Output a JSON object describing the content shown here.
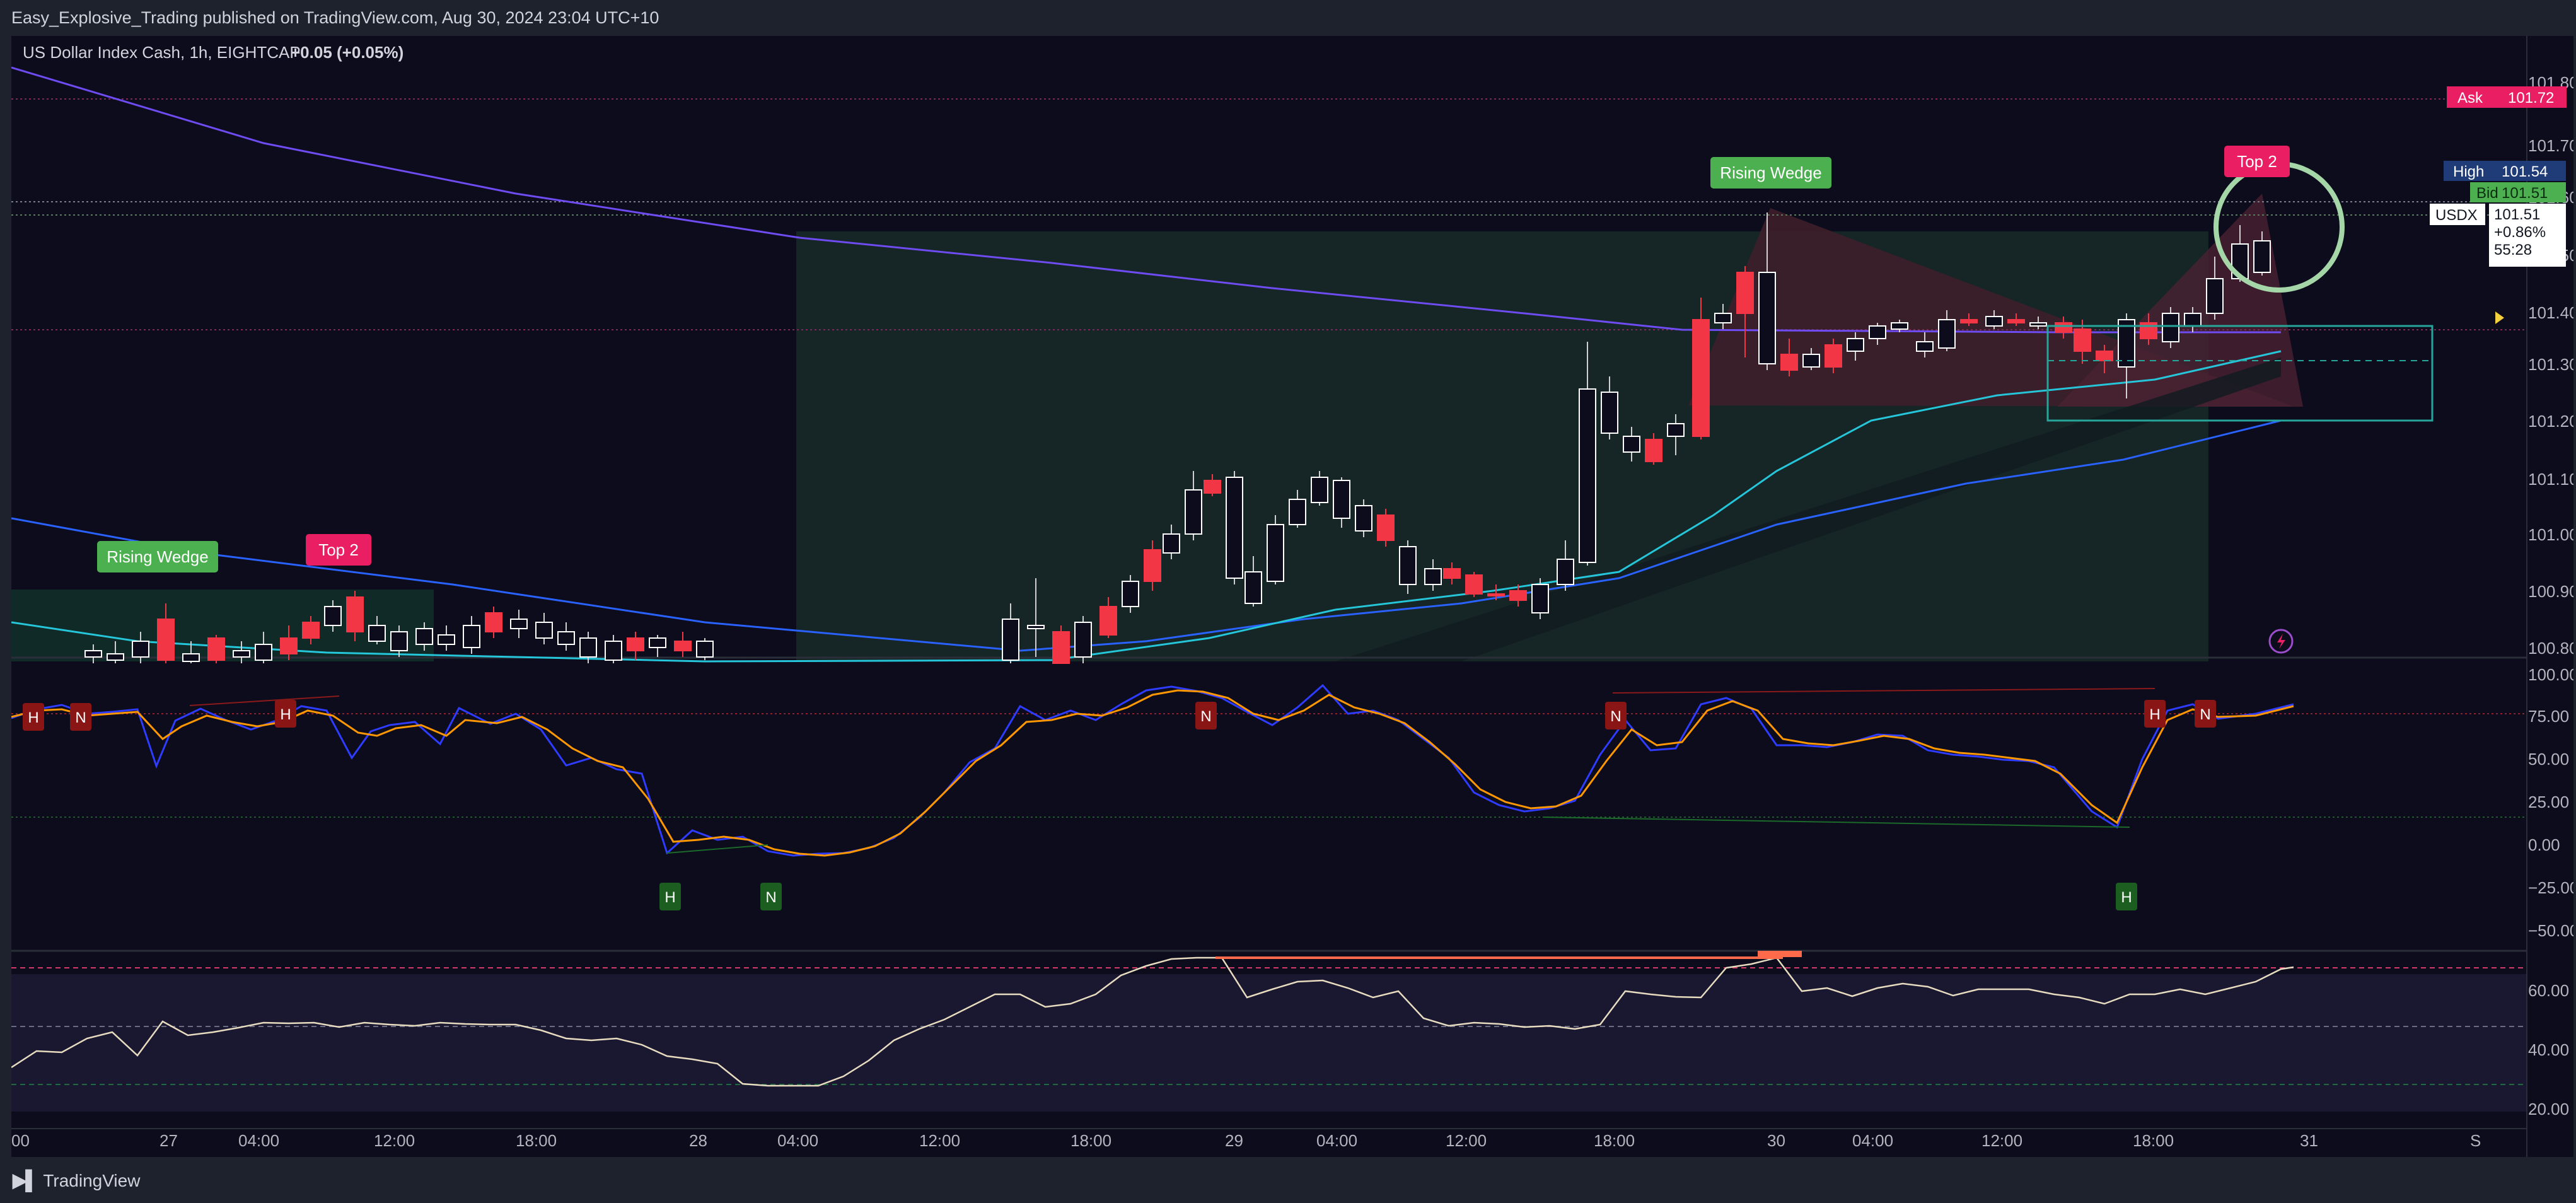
{
  "header": {
    "publish_info": "Easy_Explosive_Trading published on TradingView.com, Aug 30, 2024 23:04 UTC+10"
  },
  "legend": {
    "symbol": "US Dollar Index Cash, 1h, EIGHTCAP",
    "change": "+0.05 (+0.05%)"
  },
  "price_axis": {
    "labels": [
      "101.80",
      "101.70",
      "101.60",
      "101.50",
      "101.40",
      "101.30",
      "101.20",
      "101.10",
      "101.00",
      "100.90",
      "100.80"
    ],
    "ask": {
      "tag": "Ask",
      "value": "101.72",
      "color": "#e91e63"
    },
    "high": {
      "tag": "High",
      "value": "101.54",
      "color": "#1e3a8a"
    },
    "bid": {
      "tag": "Bid",
      "value": "101.51",
      "color": "#4caf50"
    },
    "symbol_tag": {
      "symbol": "USDX",
      "price": "101.51",
      "change": "+0.86%",
      "countdown": "55:28"
    }
  },
  "stoch_axis": {
    "labels": [
      "100.00",
      "75.00",
      "50.00",
      "25.00",
      "0.00",
      "−25.00",
      "−50.00"
    ]
  },
  "rsi_axis": {
    "labels": [
      "60.00",
      "40.00",
      "20.00"
    ]
  },
  "time_axis": {
    "labels": [
      "00",
      "27",
      "04:00",
      "12:00",
      "18:00",
      "28",
      "04:00",
      "12:00",
      "18:00",
      "29",
      "04:00",
      "12:00",
      "18:00",
      "30",
      "04:00",
      "12:00",
      "18:00",
      "31"
    ],
    "corner": "S"
  },
  "annotations": {
    "rising_wedge_left": "Rising Wedge",
    "top2_left": "Top 2",
    "rising_wedge_right": "Rising Wedge",
    "top2_right": "Top 2"
  },
  "markers": {
    "h": "H",
    "n": "N"
  },
  "colors": {
    "up_candle": "#ffffff",
    "down_candle": "#f23645",
    "ma_purple": "#7b5cff",
    "ma_teal": "#26c6da",
    "ma_blue": "#2962ff",
    "stoch_k": "#2e3cff",
    "stoch_d": "#ff9800",
    "rsi_line": "#e8dcc0",
    "green_tag": "#4caf50",
    "pink_tag": "#e91e63"
  },
  "footer": {
    "brand": "TradingView"
  }
}
